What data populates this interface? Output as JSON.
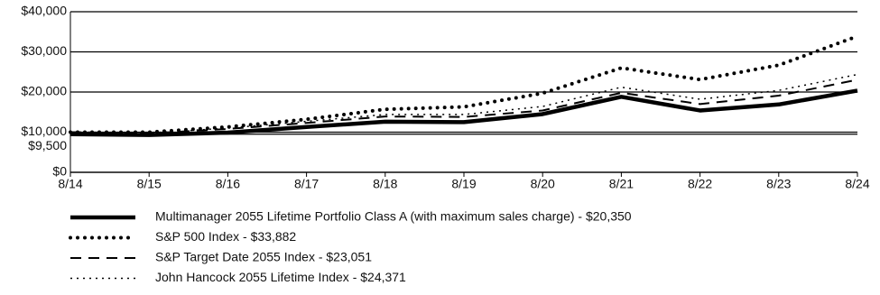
{
  "chart_data": {
    "type": "line",
    "categories": [
      "8/14",
      "8/15",
      "8/16",
      "8/17",
      "8/18",
      "8/19",
      "8/20",
      "8/21",
      "8/22",
      "8/23",
      "8/24"
    ],
    "ylim": [
      0,
      40000
    ],
    "yticks": [
      {
        "value": 0,
        "label": "$0"
      },
      {
        "value": 9500,
        "label": "$9,500"
      },
      {
        "value": 10000,
        "label": "$10,000"
      },
      {
        "value": 20000,
        "label": "$20,000"
      },
      {
        "value": 30000,
        "label": "$30,000"
      },
      {
        "value": 40000,
        "label": "$40,000"
      }
    ],
    "grid": true,
    "series": [
      {
        "name": "Multimanager 2055 Lifetime Portfolio Class A (with maximum sales charge)  - $20,350",
        "color": "#000000",
        "style": "solid",
        "width": 4.5,
        "values": [
          9500,
          9300,
          9900,
          11300,
          12600,
          12500,
          14500,
          18800,
          15400,
          16900,
          20350
        ]
      },
      {
        "name": "S&P 500 Index - $33,882",
        "color": "#000000",
        "style": "dotted",
        "width": 4,
        "values": [
          10000,
          10000,
          11300,
          13200,
          15700,
          16300,
          19700,
          26000,
          23100,
          26700,
          33882
        ]
      },
      {
        "name": "S&P Target Date 2055 Index - $23,051",
        "color": "#000000",
        "style": "dashed",
        "width": 2,
        "values": [
          10000,
          9700,
          10800,
          12300,
          13900,
          13800,
          15400,
          19800,
          17000,
          19100,
          23051
        ]
      },
      {
        "name": "John Hancock 2055 Lifetime Index - $24,371",
        "color": "#000000",
        "style": "dotted-thin",
        "width": 1.5,
        "values": [
          10000,
          9800,
          11000,
          12700,
          14400,
          14400,
          16400,
          21200,
          18200,
          20400,
          24371
        ]
      }
    ]
  }
}
